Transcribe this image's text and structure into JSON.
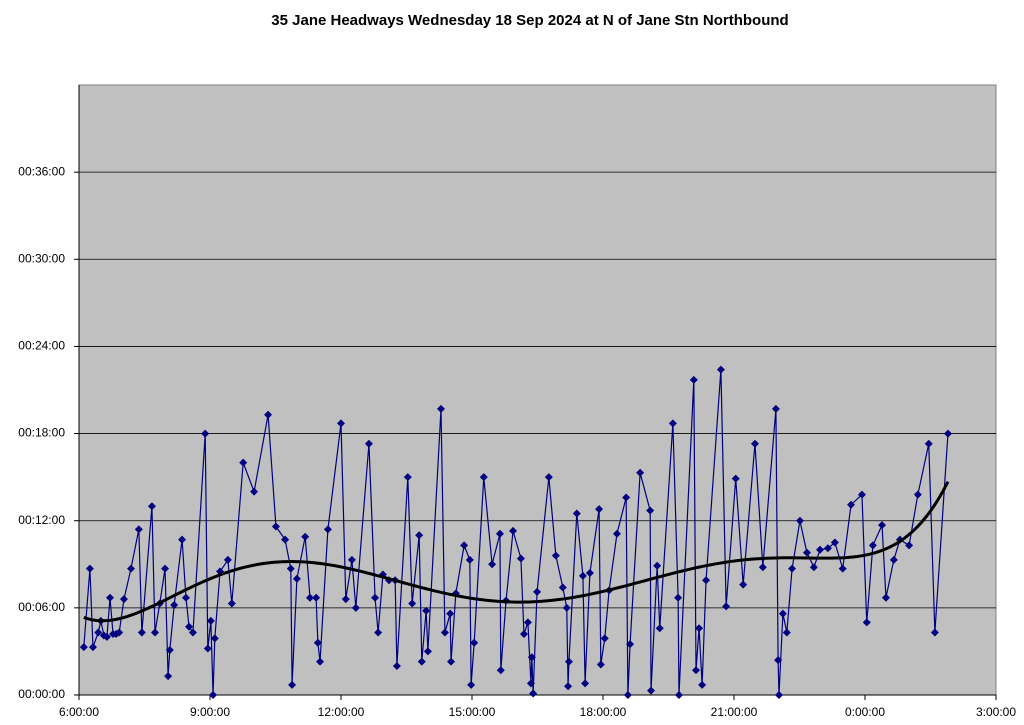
{
  "chart_data": {
    "type": "line",
    "title": "35 Jane Headways Wednesday 18 Sep 2024 at N of Jane Stn Northbound",
    "x": [
      6.11,
      6.25,
      6.32,
      6.44,
      6.5,
      6.57,
      6.64,
      6.71,
      6.78,
      6.85,
      6.92,
      7.03,
      7.19,
      7.37,
      7.44,
      7.67,
      7.74,
      7.85,
      7.97,
      8.04,
      8.08,
      8.18,
      8.36,
      8.45,
      8.52,
      8.61,
      8.89,
      8.95,
      9.02,
      9.07,
      9.11,
      9.23,
      9.41,
      9.5,
      9.76,
      10.01,
      10.33,
      10.51,
      10.72,
      10.85,
      10.88,
      10.99,
      11.18,
      11.29,
      11.43,
      11.47,
      11.52,
      11.7,
      12.0,
      12.11,
      12.25,
      12.34,
      12.64,
      12.78,
      12.85,
      12.96,
      13.1,
      13.24,
      13.28,
      13.53,
      13.63,
      13.79,
      13.85,
      13.95,
      13.99,
      14.29,
      14.38,
      14.5,
      14.52,
      14.63,
      14.82,
      14.95,
      14.98,
      15.05,
      15.27,
      15.46,
      15.64,
      15.66,
      15.78,
      15.94,
      16.12,
      16.19,
      16.28,
      16.35,
      16.37,
      16.4,
      16.49,
      16.76,
      16.92,
      17.08,
      17.17,
      17.2,
      17.22,
      17.4,
      17.54,
      17.59,
      17.7,
      17.91,
      17.95,
      18.04,
      18.14,
      18.32,
      18.53,
      18.57,
      18.62,
      18.85,
      19.08,
      19.1,
      19.24,
      19.3,
      19.6,
      19.72,
      19.74,
      20.08,
      20.13,
      20.2,
      20.27,
      20.36,
      20.7,
      20.82,
      21.04,
      21.21,
      21.48,
      21.66,
      21.96,
      22.01,
      22.03,
      22.12,
      22.21,
      22.33,
      22.51,
      22.67,
      22.83,
      22.97,
      23.15,
      23.31,
      23.49,
      23.68,
      23.93,
      24.04,
      24.18,
      24.39,
      24.48,
      24.66,
      24.8,
      25.01,
      25.21,
      25.46,
      25.6,
      25.9
    ],
    "series": [
      {
        "color": "#000080",
        "values": [
          3.3,
          8.7,
          3.3,
          4.3,
          5.1,
          4.1,
          4.0,
          6.7,
          4.2,
          4.2,
          4.3,
          6.6,
          8.7,
          11.4,
          4.3,
          13.0,
          4.3,
          6.3,
          8.7,
          1.3,
          3.1,
          6.2,
          10.7,
          6.7,
          4.7,
          4.3,
          18.0,
          3.2,
          5.1,
          0,
          3.9,
          8.5,
          9.3,
          6.3,
          16.0,
          14.0,
          19.3,
          11.6,
          10.7,
          8.7,
          0.7,
          8.0,
          10.9,
          6.7,
          6.7,
          3.6,
          2.3,
          11.4,
          18.7,
          6.6,
          9.3,
          6.0,
          17.3,
          6.7,
          4.3,
          8.3,
          7.9,
          7.9,
          2.0,
          15.0,
          6.3,
          11.0,
          2.3,
          5.8,
          3.0,
          19.7,
          4.3,
          5.6,
          2.3,
          7.0,
          10.3,
          9.3,
          0.7,
          3.6,
          15.0,
          9.0,
          11.1,
          1.7,
          6.5,
          11.3,
          9.4,
          4.2,
          5.0,
          0.8,
          2.6,
          0.1,
          7.1,
          15.0,
          9.6,
          7.4,
          6.0,
          0.6,
          2.3,
          12.5,
          8.2,
          0.8,
          8.4,
          12.8,
          2.1,
          3.9,
          7.2,
          11.1,
          13.6,
          0,
          3.5,
          15.3,
          12.7,
          0.3,
          8.9,
          4.6,
          18.7,
          6.7,
          0,
          21.7,
          1.7,
          4.6,
          0.7,
          7.9,
          22.4,
          6.1,
          14.9,
          7.6,
          17.3,
          8.8,
          19.7,
          2.4,
          0,
          5.6,
          4.3,
          8.7,
          12.0,
          9.8,
          8.8,
          10.0,
          10.1,
          10.5,
          8.7,
          13.1,
          13.8,
          5.0,
          10.3,
          11.7,
          6.7,
          9.3,
          10.7,
          10.3,
          13.8,
          17.3,
          4.3,
          18.0
        ]
      }
    ],
    "trendline": {
      "type": "polynomial",
      "order": 6,
      "color": "#000000"
    },
    "xlim": [
      6,
      27
    ],
    "xticks": [
      {
        "value": 6,
        "label": "6:00:00"
      },
      {
        "value": 9,
        "label": "9:00:00"
      },
      {
        "value": 12,
        "label": "12:00:00"
      },
      {
        "value": 15,
        "label": "15:00:00"
      },
      {
        "value": 18,
        "label": "18:00:00"
      },
      {
        "value": 21,
        "label": "21:00:00"
      },
      {
        "value": 24,
        "label": "0:00:00"
      },
      {
        "value": 27,
        "label": "3:00:00"
      }
    ],
    "ylim": [
      0,
      42
    ],
    "yticks": [
      {
        "value": 0,
        "label": "00:00:00"
      },
      {
        "value": 6,
        "label": "00:06:00"
      },
      {
        "value": 12,
        "label": "00:12:00"
      },
      {
        "value": 18,
        "label": "00:18:00"
      },
      {
        "value": 24,
        "label": "00:24:00"
      },
      {
        "value": 30,
        "label": "00:30:00"
      },
      {
        "value": 36,
        "label": "00:36:00"
      }
    ],
    "grid": true,
    "plot_background": "#c0c0c0"
  }
}
